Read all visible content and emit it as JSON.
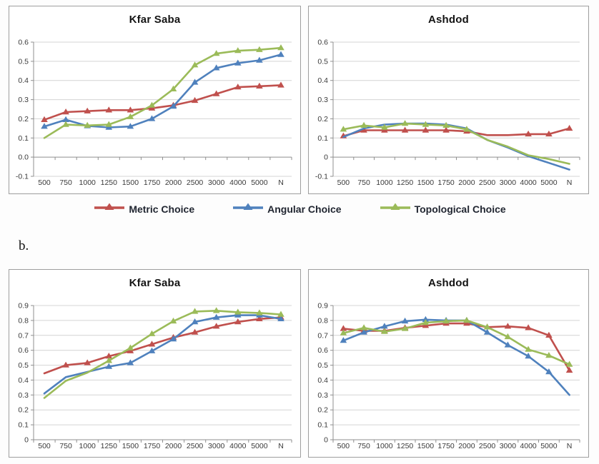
{
  "page": {
    "section_label": "b."
  },
  "colors": {
    "metric": "#c0504d",
    "angular": "#4f81bd",
    "topological": "#9bbb59",
    "grid": "#d4d4d4",
    "axis": "#8f8f8f",
    "tick_text": "#3a3a3a",
    "legend_text": "#212631"
  },
  "legend": {
    "items": [
      {
        "id": "metric-choice",
        "label": "Metric Choice",
        "color_key": "metric"
      },
      {
        "id": "angular-choice",
        "label": "Angular Choice",
        "color_key": "angular"
      },
      {
        "id": "topological-choice",
        "label": "Topological Choice",
        "color_key": "topological"
      }
    ]
  },
  "chart_data": [
    {
      "id": "kfar_saba_a",
      "type": "line",
      "title": "Kfar Saba",
      "categories": [
        "500",
        "750",
        "1000",
        "1250",
        "1500",
        "1750",
        "2000",
        "2500",
        "3000",
        "4000",
        "5000",
        "N"
      ],
      "ylim": [
        -0.1,
        0.6
      ],
      "ytick_step": 0.1,
      "ytick_labels": [
        "0.6",
        "0.5",
        "0.4",
        "0.3",
        "0.2",
        "0.1",
        "0.0",
        "-0.1"
      ],
      "axis_cross": 0,
      "grid": true,
      "series": [
        {
          "id": "metric-choice",
          "name": "Metric Choice",
          "color_key": "metric",
          "values": [
            0.195,
            0.235,
            0.24,
            0.245,
            0.245,
            0.255,
            0.27,
            0.295,
            0.33,
            0.365,
            0.37,
            0.375
          ],
          "markers": [
            true,
            true,
            true,
            true,
            true,
            true,
            true,
            true,
            true,
            true,
            true,
            true
          ]
        },
        {
          "id": "angular-choice",
          "name": "Angular Choice",
          "color_key": "angular",
          "values": [
            0.16,
            0.195,
            0.163,
            0.155,
            0.16,
            0.2,
            0.265,
            0.39,
            0.465,
            0.49,
            0.505,
            0.535
          ],
          "markers": [
            true,
            true,
            true,
            true,
            true,
            true,
            true,
            true,
            true,
            true,
            true,
            true
          ]
        },
        {
          "id": "topological-choice",
          "name": "Topological Choice",
          "color_key": "topological",
          "values": [
            0.1,
            0.17,
            0.165,
            0.17,
            0.21,
            0.27,
            0.355,
            0.48,
            0.54,
            0.555,
            0.56,
            0.57
          ],
          "markers": [
            false,
            true,
            true,
            true,
            true,
            true,
            true,
            true,
            true,
            true,
            true,
            true
          ]
        }
      ]
    },
    {
      "id": "ashdod_a",
      "type": "line",
      "title": "Ashdod",
      "categories": [
        "500",
        "750",
        "1000",
        "1250",
        "1500",
        "1750",
        "2000",
        "2500",
        "3000",
        "4000",
        "5000",
        "N"
      ],
      "ylim": [
        -0.1,
        0.6
      ],
      "ytick_step": 0.1,
      "ytick_labels": [
        "0.6",
        "0.5",
        "0.4",
        "0.3",
        "0.2",
        "0.1",
        "0",
        "-0.1"
      ],
      "axis_cross": 0,
      "grid": true,
      "series": [
        {
          "id": "metric-choice",
          "name": "Metric Choice",
          "color_key": "metric",
          "values": [
            0.11,
            0.14,
            0.14,
            0.14,
            0.14,
            0.14,
            0.135,
            0.115,
            0.115,
            0.12,
            0.12,
            0.15
          ],
          "markers": [
            true,
            true,
            true,
            true,
            true,
            true,
            true,
            false,
            false,
            true,
            true,
            true
          ]
        },
        {
          "id": "angular-choice",
          "name": "Angular Choice",
          "color_key": "angular",
          "values": [
            0.105,
            0.15,
            0.17,
            0.175,
            0.175,
            0.17,
            0.15,
            0.09,
            0.05,
            0.005,
            -0.03,
            -0.065
          ],
          "markers": [
            false,
            false,
            false,
            false,
            false,
            false,
            false,
            false,
            false,
            false,
            false,
            false
          ]
        },
        {
          "id": "topological-choice",
          "name": "Topological Choice",
          "color_key": "topological",
          "values": [
            0.145,
            0.165,
            0.155,
            0.175,
            0.17,
            0.165,
            0.145,
            0.09,
            0.055,
            0.01,
            -0.01,
            -0.035
          ],
          "markers": [
            true,
            true,
            true,
            true,
            true,
            true,
            true,
            false,
            false,
            false,
            false,
            false
          ]
        }
      ]
    },
    {
      "id": "kfar_saba_b",
      "type": "line",
      "title": "Kfar Saba",
      "categories": [
        "500",
        "750",
        "1000",
        "1250",
        "1500",
        "1750",
        "2000",
        "2500",
        "3000",
        "4000",
        "5000",
        "N"
      ],
      "ylim": [
        0,
        0.9
      ],
      "ytick_step": 0.1,
      "ytick_labels": [
        "0.9",
        "0.8",
        "0.7",
        "0.6",
        "0.5",
        "0.4",
        "0.3",
        "0.2",
        "0.1",
        "0"
      ],
      "axis_cross": 0,
      "grid": true,
      "series": [
        {
          "id": "metric-choice",
          "name": "Metric Choice",
          "color_key": "metric",
          "values": [
            0.445,
            0.5,
            0.515,
            0.56,
            0.595,
            0.64,
            0.685,
            0.72,
            0.76,
            0.79,
            0.81,
            0.82
          ],
          "markers": [
            false,
            true,
            true,
            true,
            true,
            true,
            true,
            true,
            true,
            true,
            true,
            true
          ]
        },
        {
          "id": "angular-choice",
          "name": "Angular Choice",
          "color_key": "angular",
          "values": [
            0.31,
            0.42,
            0.455,
            0.49,
            0.515,
            0.595,
            0.675,
            0.79,
            0.82,
            0.835,
            0.835,
            0.81
          ],
          "markers": [
            false,
            false,
            false,
            true,
            true,
            true,
            true,
            true,
            true,
            true,
            true,
            true
          ]
        },
        {
          "id": "topological-choice",
          "name": "Topological Choice",
          "color_key": "topological",
          "values": [
            0.28,
            0.395,
            0.45,
            0.53,
            0.615,
            0.71,
            0.795,
            0.86,
            0.865,
            0.855,
            0.85,
            0.84
          ],
          "markers": [
            false,
            false,
            false,
            true,
            true,
            true,
            true,
            true,
            true,
            true,
            true,
            true
          ]
        }
      ]
    },
    {
      "id": "ashdod_b",
      "type": "line",
      "title": "Ashdod",
      "categories": [
        "500",
        "750",
        "1000",
        "1250",
        "1500",
        "1750",
        "2000",
        "2500",
        "3000",
        "4000",
        "5000",
        "N"
      ],
      "ylim": [
        0,
        0.9
      ],
      "ytick_step": 0.1,
      "ytick_labels": [
        "0.9",
        "0.8",
        "0.7",
        "0.6",
        "0.5",
        "0.4",
        "0.3",
        "0.2",
        "0.1",
        "0"
      ],
      "axis_cross": 0,
      "grid": true,
      "series": [
        {
          "id": "metric-choice",
          "name": "Metric Choice",
          "color_key": "metric",
          "values": [
            0.745,
            0.73,
            0.73,
            0.75,
            0.765,
            0.78,
            0.78,
            0.755,
            0.76,
            0.75,
            0.7,
            0.465
          ],
          "markers": [
            true,
            true,
            true,
            true,
            true,
            true,
            true,
            true,
            true,
            true,
            true,
            true
          ]
        },
        {
          "id": "angular-choice",
          "name": "Angular Choice",
          "color_key": "angular",
          "values": [
            0.665,
            0.72,
            0.76,
            0.795,
            0.805,
            0.8,
            0.8,
            0.72,
            0.635,
            0.56,
            0.455,
            0.3
          ],
          "markers": [
            true,
            true,
            true,
            true,
            true,
            true,
            true,
            true,
            true,
            true,
            true,
            false
          ]
        },
        {
          "id": "topological-choice",
          "name": "Topological Choice",
          "color_key": "topological",
          "values": [
            0.715,
            0.75,
            0.725,
            0.745,
            0.785,
            0.795,
            0.8,
            0.755,
            0.69,
            0.605,
            0.565,
            0.505
          ],
          "markers": [
            true,
            true,
            true,
            true,
            true,
            true,
            true,
            true,
            true,
            true,
            true,
            true
          ]
        }
      ]
    }
  ]
}
